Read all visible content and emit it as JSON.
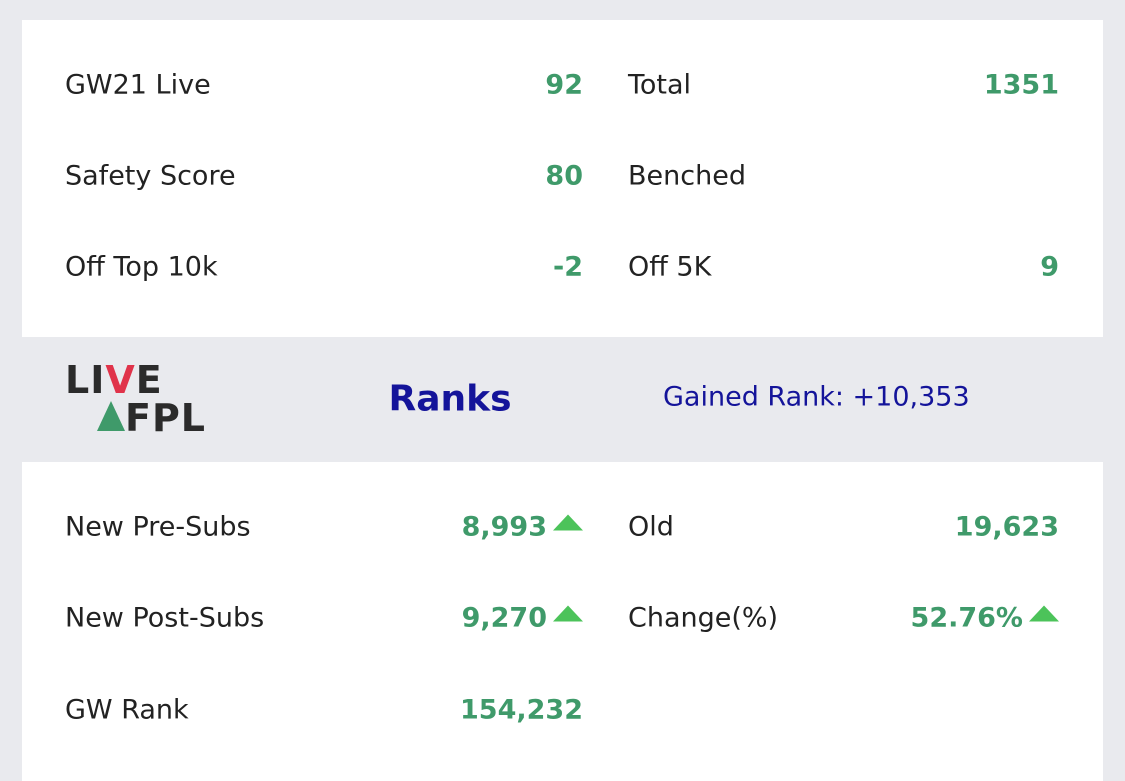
{
  "summary": [
    [
      {
        "label": "GW21 Live",
        "value": "92"
      },
      {
        "label": "Total",
        "value": "1351"
      }
    ],
    [
      {
        "label": "Safety Score",
        "value": "80"
      },
      {
        "label": "Benched"
      }
    ],
    [
      {
        "label": "Off Top 10k",
        "value": "-2"
      },
      {
        "label": "Off 5K",
        "value": "9"
      }
    ]
  ],
  "logo": {
    "top": [
      "LI",
      "V",
      "E"
    ],
    "bottom": "FPL"
  },
  "header": {
    "title": "Ranks",
    "gained": "Gained Rank: +10,353"
  },
  "ranks": [
    [
      {
        "label": "New Pre-Subs",
        "value": "8,993",
        "trend": "up"
      },
      {
        "label": "Old",
        "value": "19,623"
      }
    ],
    [
      {
        "label": "New Post-Subs",
        "value": "9,270",
        "trend": "up"
      },
      {
        "label": "Change(%)",
        "value": "52.76%",
        "trend": "up"
      }
    ],
    [
      {
        "label": "GW Rank",
        "value": "154,232"
      }
    ]
  ]
}
